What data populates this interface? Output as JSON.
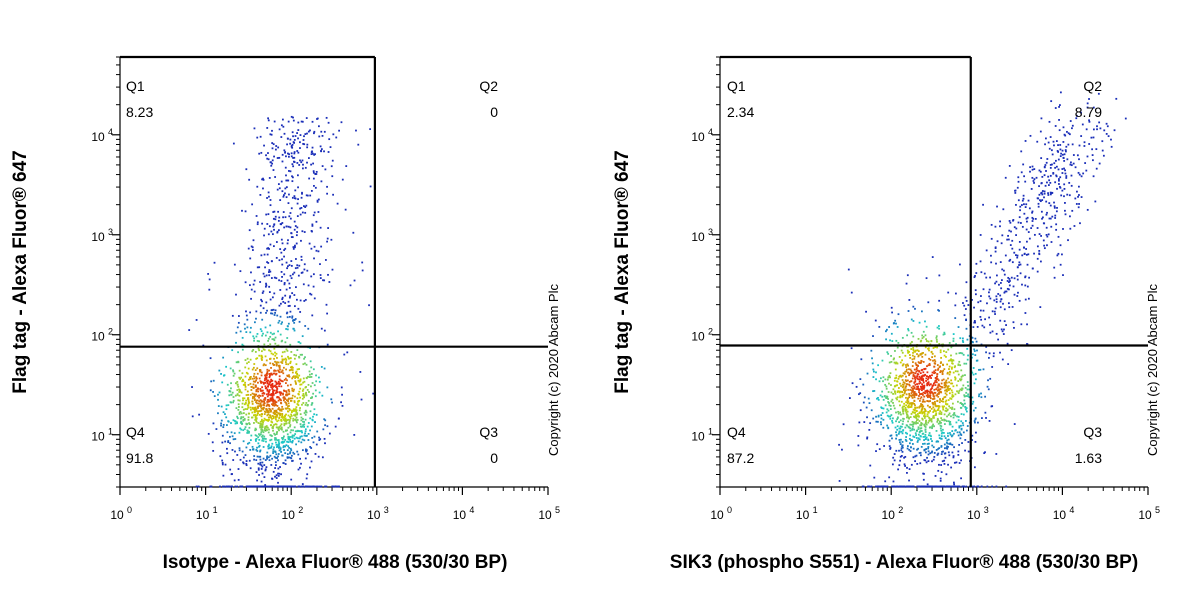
{
  "copyright": "Copyright (c) 2020 Abcam Plc",
  "colors": {
    "gate_line": "#000000",
    "density_low": "#1a2eb8",
    "density_mid": "#19c9c9",
    "density_high": "#c8d400",
    "density_peak": "#e62b10"
  },
  "chart_data": [
    {
      "type": "scatter",
      "title": "",
      "xlabel": "Isotype - Alexa Fluor® 488 (530/30 BP)",
      "ylabel": "Flag tag - Alexa Fluor® 647",
      "x_scale": "log",
      "y_scale": "log",
      "xlim": [
        1,
        100000
      ],
      "ylim": [
        3,
        60000
      ],
      "x_ticks": [
        "10^0",
        "10^1",
        "10^2",
        "10^3",
        "10^4",
        "10^5"
      ],
      "y_ticks": [
        "10^1",
        "10^2",
        "10^3",
        "10^4"
      ],
      "gate": {
        "x": 950,
        "y": 76
      },
      "quadrants": {
        "Q1": {
          "label": "Q1",
          "value": "8.23"
        },
        "Q2": {
          "label": "Q2",
          "value": "0"
        },
        "Q3": {
          "label": "Q3",
          "value": "0"
        },
        "Q4": {
          "label": "Q4",
          "value": "91.8"
        }
      },
      "population": {
        "x_center": 60,
        "y_center": 30,
        "tail": "vertical"
      }
    },
    {
      "type": "scatter",
      "title": "",
      "xlabel": "SIK3 (phospho S551) - Alexa Fluor® 488 (530/30 BP)",
      "ylabel": "Flag tag - Alexa Fluor® 647",
      "x_scale": "log",
      "y_scale": "log",
      "xlim": [
        1,
        100000
      ],
      "ylim": [
        3,
        60000
      ],
      "x_ticks": [
        "10^0",
        "10^1",
        "10^2",
        "10^3",
        "10^4",
        "10^5"
      ],
      "y_ticks": [
        "10^1",
        "10^2",
        "10^3",
        "10^4"
      ],
      "gate": {
        "x": 850,
        "y": 78
      },
      "quadrants": {
        "Q1": {
          "label": "Q1",
          "value": "2.34"
        },
        "Q2": {
          "label": "Q2",
          "value": "8.79"
        },
        "Q3": {
          "label": "Q3",
          "value": "1.63"
        },
        "Q4": {
          "label": "Q4",
          "value": "87.2"
        }
      },
      "population": {
        "x_center": 250,
        "y_center": 35,
        "tail": "diagonal"
      }
    }
  ]
}
